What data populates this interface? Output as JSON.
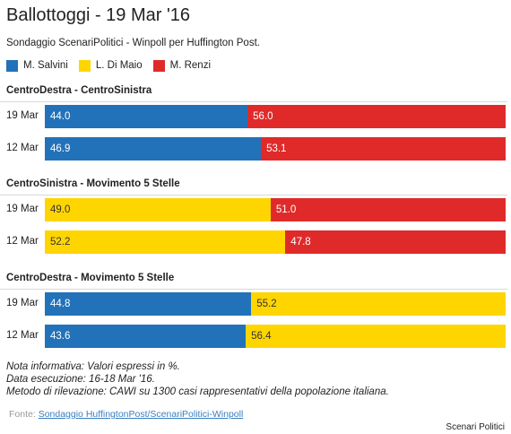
{
  "title": "Ballottoggi - 19 Mar '16",
  "subtitle": "Sondaggio ScenariPolitici - Winpoll per Huffington Post.",
  "legend": [
    {
      "label": "M. Salvini",
      "color": "#2272b9"
    },
    {
      "label": "L. Di Maio",
      "color": "#ffd500"
    },
    {
      "label": "M. Renzi",
      "color": "#e02a2a"
    }
  ],
  "chart_data": {
    "type": "bar",
    "orientation": "horizontal",
    "stacked": true,
    "percent_scale": [
      0,
      100
    ],
    "series_names": [
      "M. Salvini",
      "L. Di Maio",
      "M. Renzi"
    ],
    "groups": [
      {
        "title": "CentroDestra - CentroSinistra",
        "rows": [
          {
            "label": "19 Mar",
            "segments": [
              {
                "series": "M. Salvini",
                "value": 44.0,
                "text": "44.0"
              },
              {
                "series": "M. Renzi",
                "value": 56.0,
                "text": "56.0"
              }
            ]
          },
          {
            "label": "12 Mar",
            "segments": [
              {
                "series": "M. Salvini",
                "value": 46.9,
                "text": "46.9"
              },
              {
                "series": "M. Renzi",
                "value": 53.1,
                "text": "53.1"
              }
            ]
          }
        ]
      },
      {
        "title": "CentroSinistra - Movimento 5 Stelle",
        "rows": [
          {
            "label": "19 Mar",
            "segments": [
              {
                "series": "L. Di Maio",
                "value": 49.0,
                "text": "49.0"
              },
              {
                "series": "M. Renzi",
                "value": 51.0,
                "text": "51.0"
              }
            ]
          },
          {
            "label": "12 Mar",
            "segments": [
              {
                "series": "L. Di Maio",
                "value": 52.2,
                "text": "52.2"
              },
              {
                "series": "M. Renzi",
                "value": 47.8,
                "text": "47.8"
              }
            ]
          }
        ]
      },
      {
        "title": "CentroDestra - Movimento 5 Stelle",
        "rows": [
          {
            "label": "19 Mar",
            "segments": [
              {
                "series": "M. Salvini",
                "value": 44.8,
                "text": "44.8"
              },
              {
                "series": "L. Di Maio",
                "value": 55.2,
                "text": "55.2"
              }
            ]
          },
          {
            "label": "12 Mar",
            "segments": [
              {
                "series": "M. Salvini",
                "value": 43.6,
                "text": "43.6"
              },
              {
                "series": "L. Di Maio",
                "value": 56.4,
                "text": "56.4"
              }
            ]
          }
        ]
      }
    ]
  },
  "notes": [
    "Nota informativa: Valori espressi in %.",
    "Data esecuzione: 16-18 Mar '16.",
    "Metodo di rilevazione: CAWI su 1300 casi rappresentativi della popolazione italiana."
  ],
  "source": {
    "prefix": "Fonte: ",
    "link_text": "Sondaggio HuffingtonPost/ScenariPolitici-Winpoll"
  },
  "credit": "Scenari Politici"
}
